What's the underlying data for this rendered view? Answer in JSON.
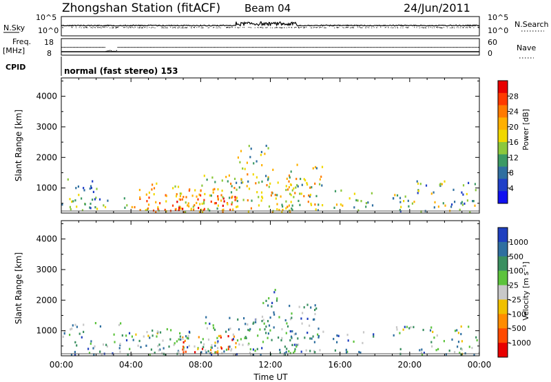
{
  "header": {
    "title": "Zhongshan Station (fitACF)",
    "beam": "Beam 04",
    "date": "24/Jun/2011"
  },
  "status_panels": {
    "nsky_label": "N.Sky",
    "nsky_ticks": [
      "10^5",
      "10^0"
    ],
    "nsearch_label": "N.Search",
    "nsearch_ticks": [
      "10^5",
      "10^0"
    ],
    "freq_label": "Freq.",
    "freq_unit": "[MHz]",
    "freq_ticks": [
      "18",
      "8"
    ],
    "nave_label": "Nave",
    "nave_ticks": [
      "60",
      "0"
    ],
    "cpid_label": "CPID",
    "cpid_text": "normal (fast stereo) 153"
  },
  "chart_data": [
    {
      "type": "heatmap",
      "name": "power-panel",
      "ylabel": "Slant Range [km]",
      "yticks": [
        1000,
        2000,
        3000,
        4000
      ],
      "ylim": [
        180,
        4600
      ],
      "xlim": [
        0,
        24
      ],
      "colorbar_label": "Power [dB]",
      "colorbar_ticks": [
        "28",
        "24",
        "20",
        "16",
        "12",
        "8",
        "4"
      ],
      "colorbar_colors": [
        "#e80000",
        "#ff3a00",
        "#ff7a00",
        "#ffb000",
        "#f0d800",
        "#8cc83c",
        "#3c9a64",
        "#2f6fa0",
        "#2040c8",
        "#1010f0"
      ],
      "regions": [
        {
          "t0": 0.0,
          "t1": 2.0,
          "r0": 250,
          "r1": 1500,
          "density": 0.55,
          "level": 0.35
        },
        {
          "t0": 2.0,
          "t1": 4.0,
          "r0": 250,
          "r1": 700,
          "density": 0.4,
          "level": 0.4
        },
        {
          "t0": 4.0,
          "t1": 8.0,
          "r0": 250,
          "r1": 1200,
          "density": 0.75,
          "level": 0.65
        },
        {
          "t0": 6.5,
          "t1": 10.0,
          "r0": 300,
          "r1": 900,
          "density": 0.85,
          "level": 0.8
        },
        {
          "t0": 8.0,
          "t1": 13.5,
          "r0": 250,
          "r1": 1500,
          "density": 0.7,
          "level": 0.55
        },
        {
          "t0": 10.0,
          "t1": 12.5,
          "r0": 1200,
          "r1": 2600,
          "density": 0.35,
          "level": 0.45
        },
        {
          "t0": 13.0,
          "t1": 15.0,
          "r0": 300,
          "r1": 1800,
          "density": 0.7,
          "level": 0.5
        },
        {
          "t0": 15.5,
          "t1": 18.0,
          "r0": 300,
          "r1": 1000,
          "density": 0.45,
          "level": 0.45
        },
        {
          "t0": 19.0,
          "t1": 24.0,
          "r0": 250,
          "r1": 1300,
          "density": 0.5,
          "level": 0.4
        }
      ]
    },
    {
      "type": "heatmap",
      "name": "velocity-panel",
      "ylabel": "Slant Range [km]",
      "yticks": [
        1000,
        2000,
        3000,
        4000
      ],
      "ylim": [
        180,
        4600
      ],
      "xlim": [
        0,
        24
      ],
      "xticks": [
        "00:00",
        "04:00",
        "08:00",
        "12:00",
        "16:00",
        "20:00",
        "00:00"
      ],
      "xlabel": "Time UT",
      "colorbar_label": "Velocity [m s⁻¹]",
      "colorbar_ticks": [
        "1000",
        "500",
        "100",
        "25",
        "-25",
        "-100",
        "-500",
        "-1000"
      ],
      "colorbar_colors": [
        "#1f3fbf",
        "#2f6fa0",
        "#3a8f60",
        "#5cc33c",
        "#c8c8c8",
        "#f0c000",
        "#ff8c00",
        "#ff4a00",
        "#e80000"
      ],
      "regions": [
        {
          "t0": 0.0,
          "t1": 4.0,
          "r0": 250,
          "r1": 1300,
          "density": 0.55,
          "level": 0.7
        },
        {
          "t0": 4.0,
          "t1": 8.0,
          "r0": 250,
          "r1": 1100,
          "density": 0.75,
          "level": 0.65
        },
        {
          "t0": 6.5,
          "t1": 10.0,
          "r0": 300,
          "r1": 900,
          "density": 0.8,
          "level": 0.3
        },
        {
          "t0": 8.0,
          "t1": 13.5,
          "r0": 250,
          "r1": 1500,
          "density": 0.7,
          "level": 0.7
        },
        {
          "t0": 11.0,
          "t1": 12.5,
          "r0": 1200,
          "r1": 2600,
          "density": 0.35,
          "level": 0.75
        },
        {
          "t0": 13.0,
          "t1": 15.0,
          "r0": 300,
          "r1": 1900,
          "density": 0.7,
          "level": 0.7
        },
        {
          "t0": 15.5,
          "t1": 18.0,
          "r0": 300,
          "r1": 1000,
          "density": 0.45,
          "level": 0.7
        },
        {
          "t0": 19.0,
          "t1": 24.0,
          "r0": 250,
          "r1": 1200,
          "density": 0.5,
          "level": 0.65
        }
      ]
    }
  ]
}
